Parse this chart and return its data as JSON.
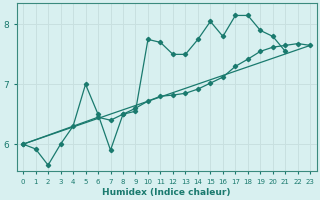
{
  "title": "",
  "xlabel": "Humidex (Indice chaleur)",
  "bg_color": "#d8f0f0",
  "grid_color": "#b8d8d8",
  "line_color": "#1a7a6e",
  "xlim": [
    -0.5,
    23.5
  ],
  "ylim": [
    5.55,
    8.35
  ],
  "y_ticks": [
    6,
    7,
    8
  ],
  "x_ticks": [
    0,
    1,
    2,
    3,
    4,
    5,
    6,
    7,
    8,
    9,
    10,
    11,
    12,
    13,
    14,
    15,
    16,
    17,
    18,
    19,
    20,
    21,
    22,
    23
  ],
  "line1_x": [
    0,
    1,
    2,
    3,
    4,
    5,
    6,
    7,
    8,
    9,
    10,
    11,
    12,
    13,
    14,
    15,
    16,
    17,
    18,
    19,
    20,
    21
  ],
  "line1_y": [
    6.0,
    5.92,
    5.65,
    6.0,
    6.3,
    7.0,
    6.5,
    5.9,
    6.5,
    6.55,
    7.75,
    7.7,
    7.5,
    7.5,
    7.75,
    8.05,
    7.8,
    8.15,
    8.15,
    7.9,
    7.8,
    7.55
  ],
  "line2_x": [
    0,
    6,
    7,
    8,
    9,
    10,
    11,
    12,
    13,
    14,
    15,
    16,
    17,
    18,
    19,
    20,
    21,
    22,
    23
  ],
  "line2_y": [
    6.0,
    6.45,
    6.4,
    6.5,
    6.6,
    6.72,
    6.8,
    6.82,
    6.85,
    6.92,
    7.02,
    7.12,
    7.3,
    7.42,
    7.55,
    7.62,
    7.65,
    7.68,
    7.65
  ],
  "line3_x": [
    0,
    23
  ],
  "line3_y": [
    6.0,
    7.65
  ]
}
